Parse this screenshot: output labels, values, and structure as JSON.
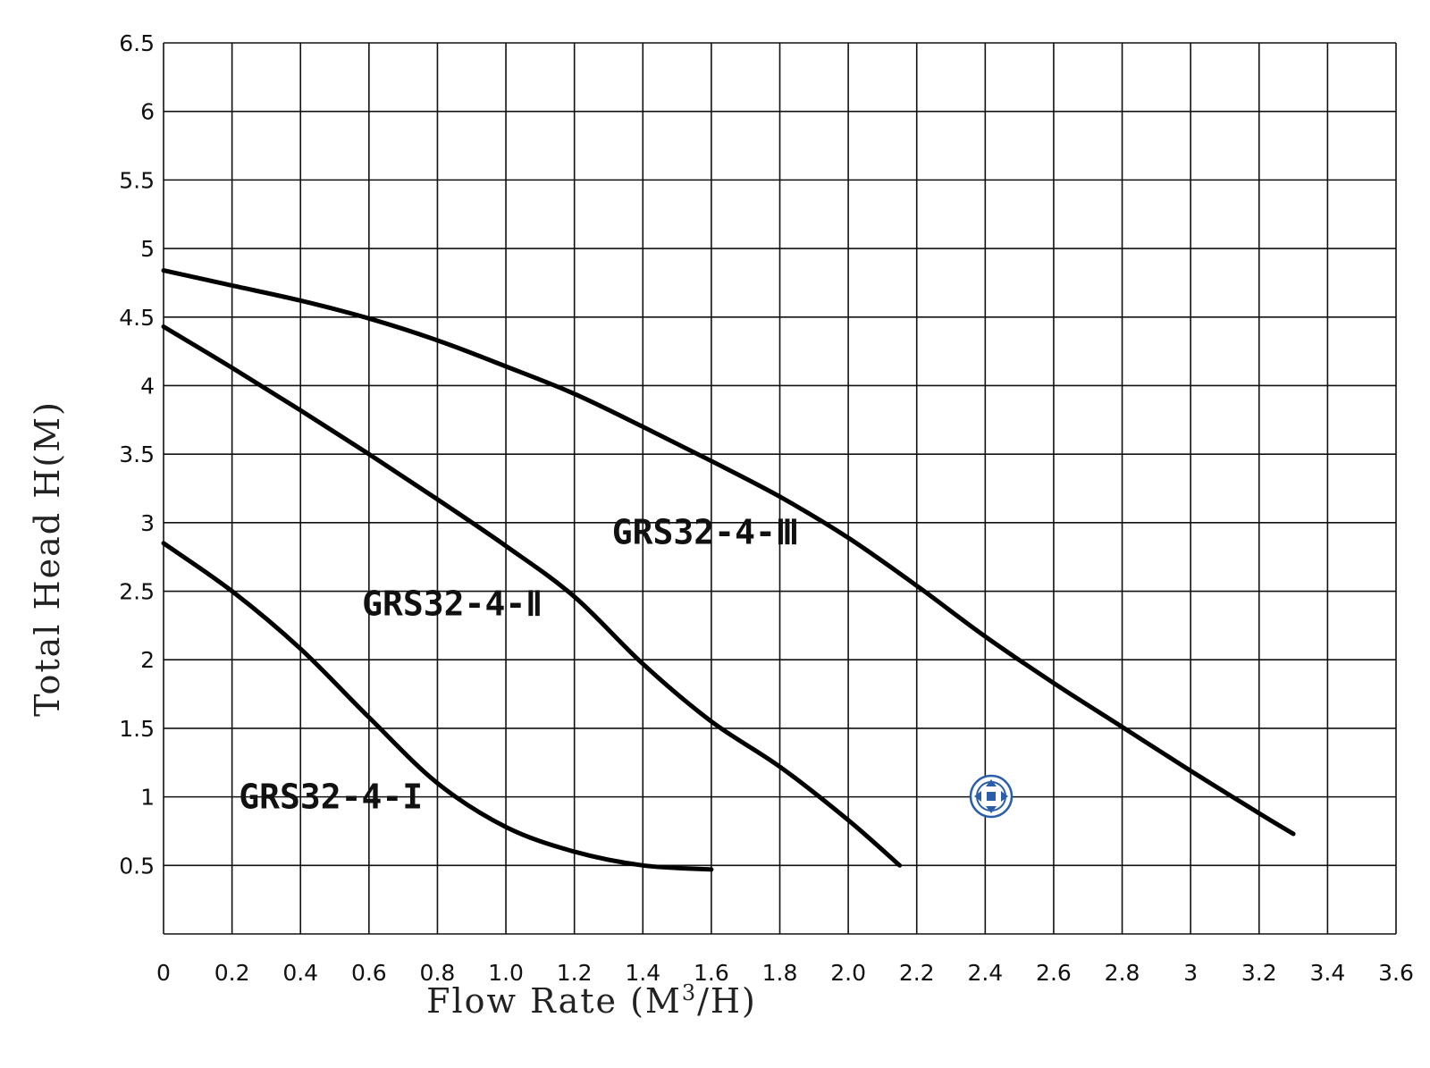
{
  "chart_data": {
    "type": "line",
    "title": "",
    "xlabel_main": "Flow Rate (M",
    "xlabel_sup": "3",
    "xlabel_end": "/H)",
    "ylabel": "Total Head H(M)",
    "xlim": [
      0,
      3.6
    ],
    "ylim": [
      0,
      6.5
    ],
    "grid": true,
    "x_ticks": [
      0,
      0.2,
      0.4,
      0.6,
      0.8,
      1.0,
      1.2,
      1.4,
      1.6,
      1.8,
      2.0,
      2.2,
      2.4,
      2.6,
      2.8,
      3,
      3.2,
      3.4,
      3.6
    ],
    "x_tick_labels": [
      "0",
      "0.2",
      "0.4",
      "0.6",
      "0.8",
      "1.0",
      "1.2",
      "1.4",
      "1.6",
      "1.8",
      "2.0",
      "2.2",
      "2.4",
      "2.6",
      "2.8",
      "3",
      "3.2",
      "3.4",
      "3.6"
    ],
    "y_ticks": [
      0.5,
      1,
      1.5,
      2,
      2.5,
      3,
      3.5,
      4,
      4.5,
      5,
      5.5,
      6,
      6.5
    ],
    "y_tick_labels": [
      "0.5",
      "1",
      "1.5",
      "2",
      "2.5",
      "3",
      "3.5",
      "4",
      "4.5",
      "5",
      "5.5",
      "6",
      "6.5"
    ],
    "series": [
      {
        "name": "GRS32-4-I",
        "x": [
          0,
          0.2,
          0.4,
          0.6,
          0.8,
          1.0,
          1.2,
          1.4,
          1.6
        ],
        "y": [
          2.85,
          2.5,
          2.08,
          1.58,
          1.1,
          0.78,
          0.6,
          0.5,
          0.47
        ],
        "label_at": [
          0.22,
          1.0
        ]
      },
      {
        "name": "GRS32-4-Ⅱ",
        "x": [
          0,
          0.2,
          0.4,
          0.6,
          0.8,
          1.0,
          1.2,
          1.4,
          1.6,
          1.8,
          2.0,
          2.15
        ],
        "y": [
          4.43,
          4.13,
          3.82,
          3.5,
          3.17,
          2.83,
          2.46,
          1.97,
          1.55,
          1.22,
          0.83,
          0.5
        ],
        "label_at": [
          0.58,
          2.41
        ]
      },
      {
        "name": "GRS32-4-Ⅲ",
        "x": [
          0,
          0.2,
          0.4,
          0.6,
          0.8,
          1.0,
          1.2,
          1.4,
          1.6,
          1.8,
          2.0,
          2.2,
          2.4,
          2.6,
          2.8,
          3.0,
          3.2,
          3.3
        ],
        "y": [
          4.84,
          4.73,
          4.62,
          4.49,
          4.33,
          4.14,
          3.94,
          3.7,
          3.45,
          3.19,
          2.89,
          2.54,
          2.17,
          1.83,
          1.51,
          1.19,
          0.88,
          0.73
        ],
        "label_at": [
          1.31,
          2.93
        ]
      }
    ]
  },
  "icons": {
    "move_icon": "move-icon",
    "move_icon_color": "#2b5ea8"
  }
}
